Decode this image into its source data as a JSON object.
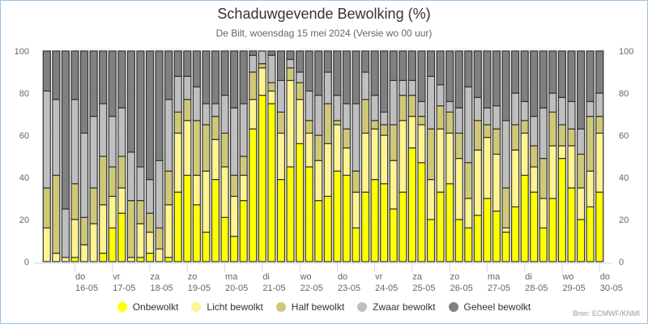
{
  "chart_data": {
    "type": "bar",
    "stacked": true,
    "title": "Schaduwgevende Bewolking (%)",
    "subtitle": "De Bilt, woensdag 15 mei 2024 (Versie wo 00 uur)",
    "xlabel": "",
    "ylabel": "",
    "ylim": [
      0,
      100
    ],
    "yticks": [
      "0",
      "20",
      "40",
      "60",
      "80",
      "100"
    ],
    "grid": true,
    "legend_position": "bottom",
    "bar_interval_hours": 6,
    "day_labels": [
      {
        "day": "do",
        "date": "16-05"
      },
      {
        "day": "vr",
        "date": "17-05"
      },
      {
        "day": "za",
        "date": "18-05"
      },
      {
        "day": "zo",
        "date": "19-05"
      },
      {
        "day": "ma",
        "date": "20-05"
      },
      {
        "day": "di",
        "date": "21-05"
      },
      {
        "day": "wo",
        "date": "22-05"
      },
      {
        "day": "do",
        "date": "23-05"
      },
      {
        "day": "vr",
        "date": "24-05"
      },
      {
        "day": "za",
        "date": "25-05"
      },
      {
        "day": "zo",
        "date": "26-05"
      },
      {
        "day": "ma",
        "date": "27-05"
      },
      {
        "day": "di",
        "date": "28-05"
      },
      {
        "day": "wo",
        "date": "29-05"
      },
      {
        "day": "do",
        "date": "30-05"
      }
    ],
    "series": [
      {
        "name": "Onbewolkt",
        "color": "#ffff00",
        "values": [
          0,
          0,
          0,
          2,
          0,
          0,
          4,
          16,
          23,
          0,
          2,
          4,
          0,
          2,
          33,
          41,
          27,
          14,
          39,
          21,
          12,
          29,
          63,
          79,
          75,
          39,
          45,
          56,
          45,
          29,
          31,
          43,
          41,
          16,
          33,
          39,
          37,
          25,
          33,
          54,
          47,
          20,
          33,
          37,
          20,
          16,
          22,
          30,
          24,
          14,
          26,
          41,
          33,
          16,
          30,
          49,
          35,
          20,
          26,
          33
        ]
      },
      {
        "name": "Licht bewolkt",
        "color": "#fff48f",
        "values": [
          16,
          4,
          2,
          18,
          8,
          18,
          23,
          15,
          12,
          2,
          16,
          10,
          6,
          25,
          28,
          26,
          14,
          29,
          19,
          24,
          19,
          12,
          14,
          13,
          6,
          22,
          41,
          21,
          16,
          19,
          25,
          22,
          13,
          17,
          28,
          24,
          23,
          23,
          34,
          15,
          18,
          19,
          30,
          24,
          29,
          14,
          31,
          29,
          27,
          2,
          27,
          20,
          12,
          14,
          25,
          6,
          20,
          15,
          17,
          28
        ]
      },
      {
        "name": "Half bewolkt",
        "color": "#cfc878",
        "values": [
          19,
          37,
          0,
          17,
          13,
          17,
          23,
          14,
          15,
          27,
          11,
          9,
          10,
          16,
          10,
          10,
          26,
          22,
          11,
          16,
          10,
          9,
          13,
          2,
          4,
          10,
          6,
          8,
          6,
          12,
          19,
          2,
          9,
          10,
          16,
          4,
          5,
          17,
          12,
          10,
          4,
          24,
          11,
          10,
          12,
          17,
          14,
          6,
          12,
          19,
          12,
          6,
          10,
          19,
          16,
          10,
          8,
          16,
          26,
          8
        ]
      },
      {
        "name": "Zwaar bewolkt",
        "color": "#bfbfbf",
        "values": [
          46,
          36,
          23,
          40,
          40,
          34,
          25,
          24,
          23,
          23,
          16,
          16,
          32,
          34,
          17,
          11,
          16,
          10,
          6,
          18,
          32,
          25,
          8,
          6,
          13,
          15,
          4,
          5,
          14,
          19,
          15,
          12,
          12,
          32,
          13,
          12,
          6,
          21,
          7,
          7,
          7,
          25,
          10,
          5,
          12,
          36,
          11,
          8,
          11,
          32,
          15,
          9,
          14,
          24,
          9,
          13,
          13,
          12,
          7,
          11
        ]
      },
      {
        "name": "Geheel bewolkt",
        "color": "#808080",
        "values": [
          19,
          23,
          75,
          23,
          39,
          31,
          25,
          31,
          27,
          48,
          55,
          61,
          52,
          23,
          12,
          12,
          17,
          25,
          25,
          21,
          27,
          25,
          2,
          0,
          2,
          14,
          4,
          10,
          19,
          21,
          10,
          21,
          25,
          25,
          10,
          21,
          29,
          14,
          14,
          14,
          24,
          12,
          16,
          24,
          27,
          17,
          22,
          27,
          26,
          33,
          20,
          24,
          31,
          27,
          20,
          22,
          24,
          37,
          24,
          20
        ]
      }
    ]
  },
  "footer": {
    "source": "Bron: ECMWF/KNMI"
  }
}
